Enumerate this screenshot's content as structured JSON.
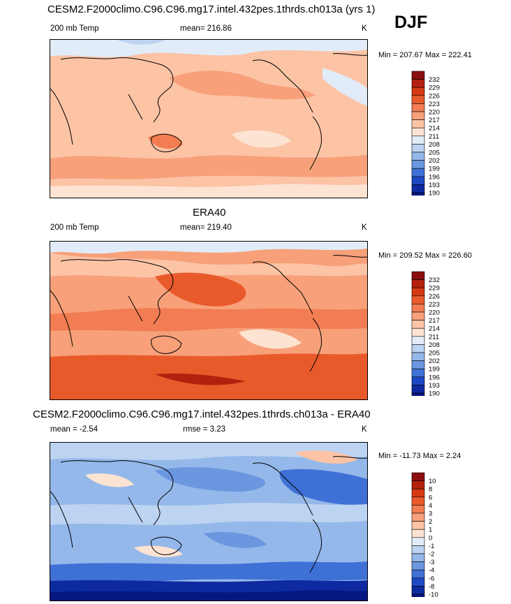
{
  "season": "DJF",
  "chart_data": [
    {
      "type": "heatmap",
      "title": "CESM2.F2000climo.C96.C96.mg17.intel.432pes.1thrds.ch013a (yrs 1)",
      "left_label": "200 mb Temp",
      "center_label": "mean= 216.86",
      "units": "K",
      "min_max": "Min = 207.67 Max = 222.41",
      "min": 207.67,
      "max": 222.41,
      "mean": 216.86,
      "colorbar_levels": [
        "232",
        "229",
        "226",
        "223",
        "220",
        "217",
        "214",
        "211",
        "208",
        "205",
        "202",
        "199",
        "196",
        "193",
        "190"
      ],
      "colorbar_colors": [
        "#8b0d0d",
        "#b3200e",
        "#d63a12",
        "#e95a2b",
        "#f27d52",
        "#f7a07a",
        "#fcc3a5",
        "#fde3d2",
        "#e1ecf8",
        "#bcd3f1",
        "#94b8ea",
        "#6b97e0",
        "#3f70d6",
        "#1d48c4",
        "#0d2aa0",
        "#061681"
      ]
    },
    {
      "type": "heatmap",
      "title": "ERA40",
      "left_label": "200 mb Temp",
      "center_label": "mean= 219.40",
      "units": "K",
      "min_max": "Min = 209.52 Max = 226.60",
      "min": 209.52,
      "max": 226.6,
      "mean": 219.4,
      "colorbar_levels": [
        "232",
        "229",
        "226",
        "223",
        "220",
        "217",
        "214",
        "211",
        "208",
        "205",
        "202",
        "199",
        "196",
        "193",
        "190"
      ],
      "colorbar_colors": [
        "#8b0d0d",
        "#b3200e",
        "#d63a12",
        "#e95a2b",
        "#f27d52",
        "#f7a07a",
        "#fcc3a5",
        "#fde3d2",
        "#e1ecf8",
        "#bcd3f1",
        "#94b8ea",
        "#6b97e0",
        "#3f70d6",
        "#1d48c4",
        "#0d2aa0",
        "#061681"
      ]
    },
    {
      "type": "heatmap",
      "title": "CESM2.F2000climo.C96.C96.mg17.intel.432pes.1thrds.ch013a - ERA40",
      "left_label": "mean =  -2.54",
      "center_label": "rmse =   3.23",
      "units": "K",
      "min_max": "Min = -11.73 Max =   2.24",
      "min": -11.73,
      "max": 2.24,
      "mean": -2.54,
      "rmse": 3.23,
      "colorbar_levels": [
        "10",
        "8",
        "6",
        "4",
        "3",
        "2",
        "1",
        "0",
        "-1",
        "-2",
        "-3",
        "-4",
        "-6",
        "-8",
        "-10"
      ],
      "colorbar_colors": [
        "#8b0d0d",
        "#b3200e",
        "#d63a12",
        "#e95a2b",
        "#f27d52",
        "#f7a07a",
        "#fcc3a5",
        "#fde3d2",
        "#e1ecf8",
        "#bcd3f1",
        "#94b8ea",
        "#6b97e0",
        "#3f70d6",
        "#1d48c4",
        "#0d2aa0",
        "#061681"
      ]
    }
  ]
}
